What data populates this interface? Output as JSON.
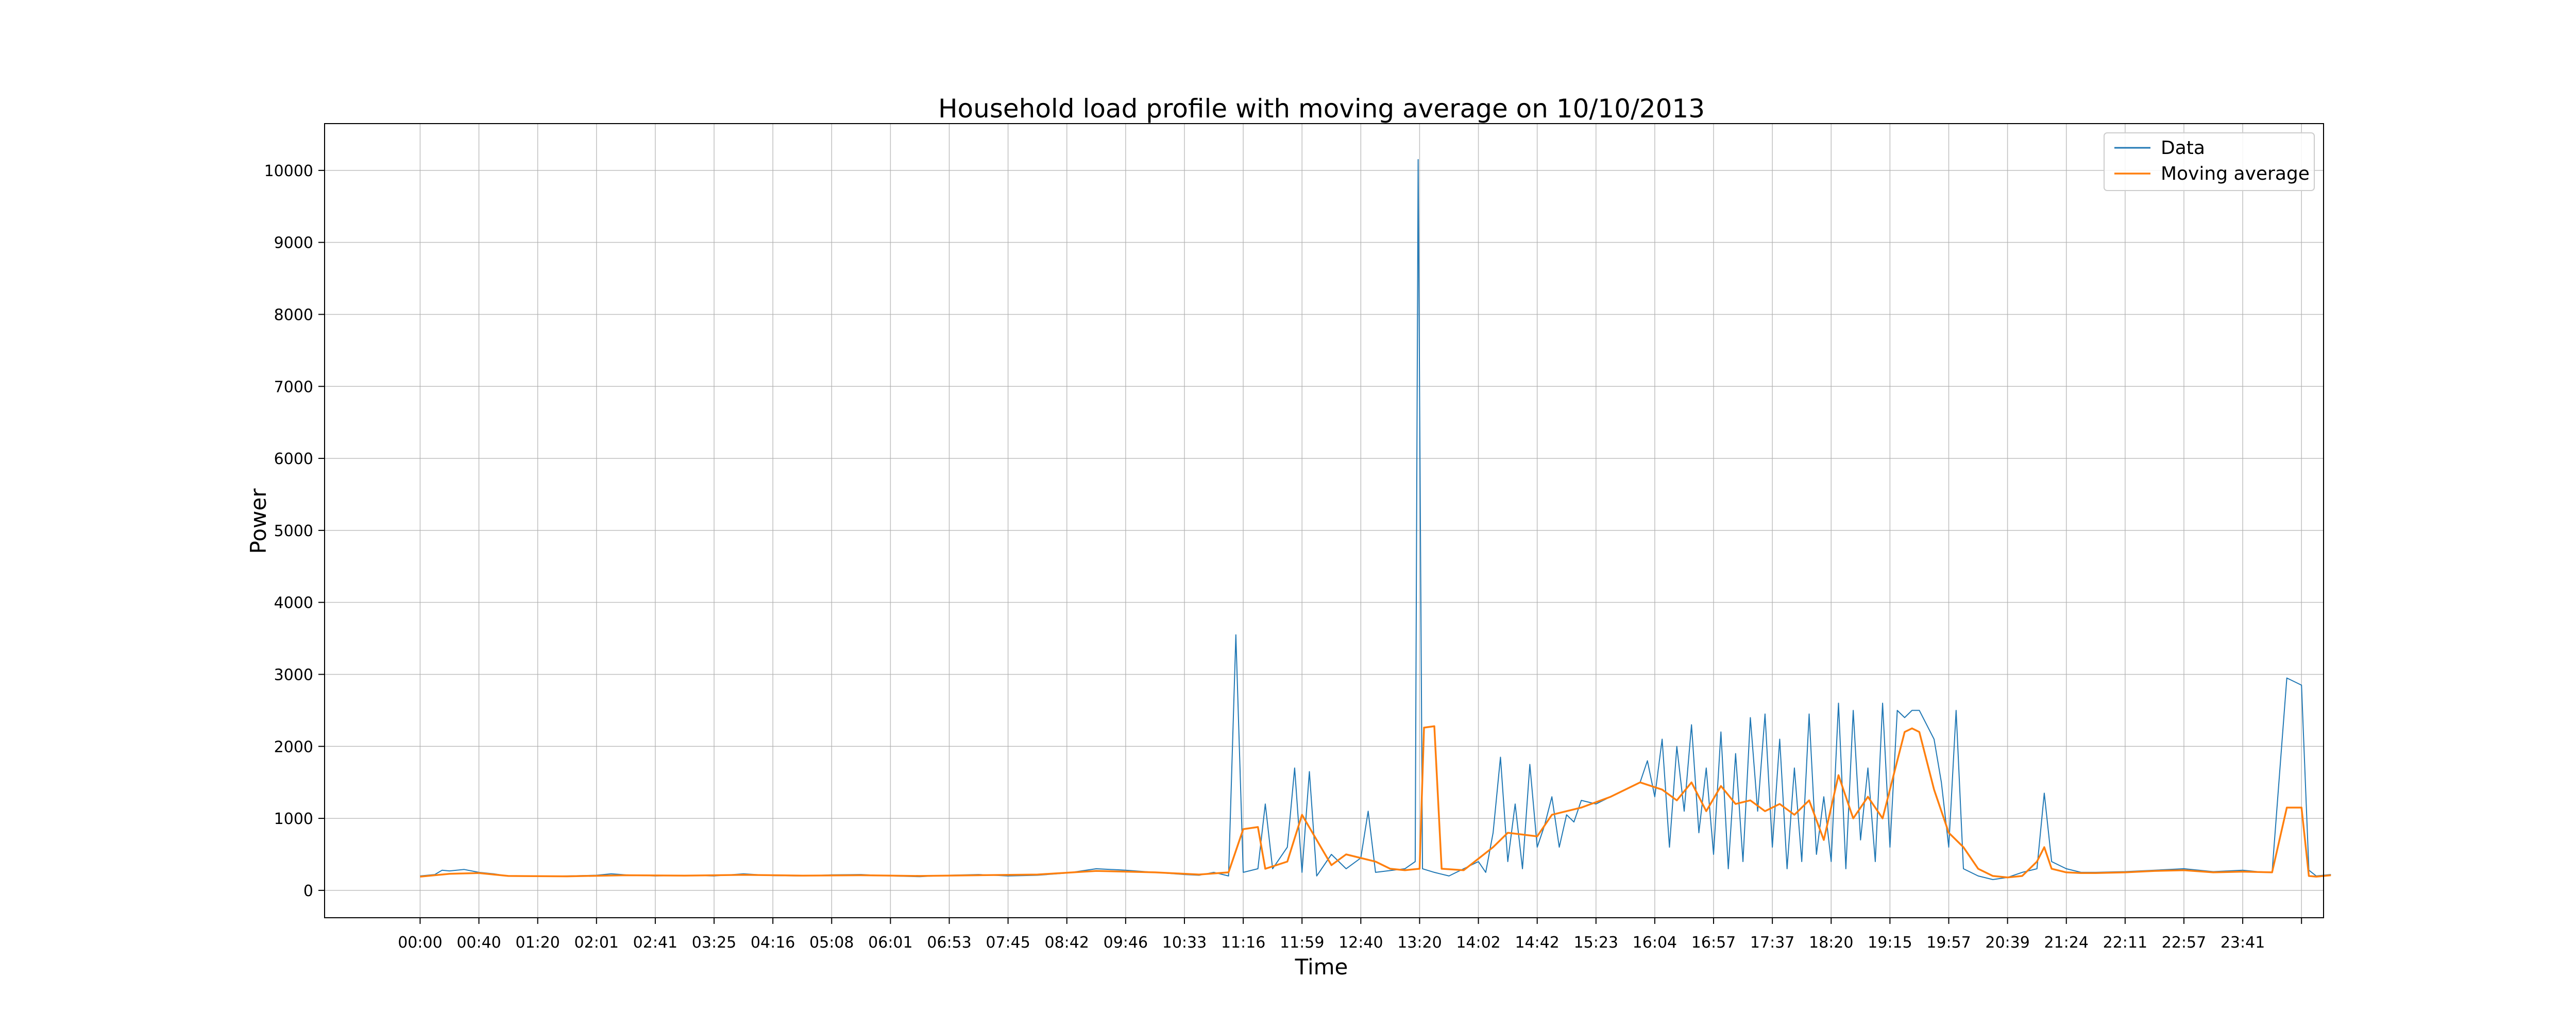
{
  "chart_data": {
    "type": "line",
    "title": "Household load profile with moving average on 10/10/2013",
    "xlabel": "Time",
    "ylabel": "Power",
    "xlim": [
      -6.5,
      129.5
    ],
    "ylim": [
      -380,
      10650
    ],
    "grid": true,
    "legend_position": "top-right",
    "x_tick_labels": [
      "00:00",
      "00:40",
      "01:20",
      "02:01",
      "02:41",
      "03:25",
      "04:16",
      "05:08",
      "06:01",
      "06:53",
      "07:45",
      "08:42",
      "09:46",
      "10:33",
      "11:16",
      "11:59",
      "12:40",
      "13:20",
      "14:02",
      "14:42",
      "15:23",
      "16:04",
      "16:57",
      "17:37",
      "18:20",
      "19:15",
      "19:57",
      "20:39",
      "21:24",
      "22:11",
      "22:57",
      "23:41"
    ],
    "y_ticks": [
      0,
      1000,
      2000,
      3000,
      4000,
      5000,
      6000,
      7000,
      8000,
      9000,
      10000
    ],
    "series": [
      {
        "name": "Data",
        "color": "#1f77b4",
        "points": [
          [
            0,
            200
          ],
          [
            1,
            220
          ],
          [
            1.5,
            280
          ],
          [
            2,
            270
          ],
          [
            3,
            290
          ],
          [
            4,
            250
          ],
          [
            5,
            230
          ],
          [
            6,
            200
          ],
          [
            8,
            195
          ],
          [
            10,
            200
          ],
          [
            12,
            210
          ],
          [
            13,
            230
          ],
          [
            14,
            215
          ],
          [
            16,
            200
          ],
          [
            18,
            210
          ],
          [
            20,
            200
          ],
          [
            22,
            230
          ],
          [
            24,
            205
          ],
          [
            26,
            200
          ],
          [
            28,
            215
          ],
          [
            30,
            220
          ],
          [
            32,
            200
          ],
          [
            34,
            190
          ],
          [
            36,
            210
          ],
          [
            38,
            220
          ],
          [
            40,
            200
          ],
          [
            42,
            210
          ],
          [
            44,
            240
          ],
          [
            46,
            300
          ],
          [
            48,
            280
          ],
          [
            50,
            250
          ],
          [
            52,
            220
          ],
          [
            53,
            210
          ],
          [
            54,
            250
          ],
          [
            55,
            200
          ],
          [
            55.5,
            3550
          ],
          [
            56,
            250
          ],
          [
            57,
            300
          ],
          [
            57.5,
            1200
          ],
          [
            58,
            300
          ],
          [
            59,
            600
          ],
          [
            59.5,
            1700
          ],
          [
            60,
            250
          ],
          [
            60.5,
            1650
          ],
          [
            61,
            200
          ],
          [
            62,
            500
          ],
          [
            63,
            300
          ],
          [
            64,
            450
          ],
          [
            64.5,
            1100
          ],
          [
            65,
            250
          ],
          [
            67,
            300
          ],
          [
            67.7,
            400
          ],
          [
            67.9,
            10150
          ],
          [
            68.2,
            300
          ],
          [
            69,
            250
          ],
          [
            70,
            200
          ],
          [
            71,
            300
          ],
          [
            72,
            400
          ],
          [
            72.5,
            250
          ],
          [
            73,
            800
          ],
          [
            73.5,
            1850
          ],
          [
            74,
            400
          ],
          [
            74.5,
            1200
          ],
          [
            75,
            300
          ],
          [
            75.5,
            1750
          ],
          [
            76,
            600
          ],
          [
            76.5,
            900
          ],
          [
            77,
            1300
          ],
          [
            77.5,
            600
          ],
          [
            78,
            1050
          ],
          [
            78.5,
            950
          ],
          [
            79,
            1250
          ],
          [
            80,
            1200
          ],
          [
            81,
            1300
          ],
          [
            82,
            1400
          ],
          [
            83,
            1500
          ],
          [
            83.5,
            1800
          ],
          [
            84,
            1300
          ],
          [
            84.5,
            2100
          ],
          [
            85,
            600
          ],
          [
            85.5,
            2000
          ],
          [
            86,
            1100
          ],
          [
            86.5,
            2300
          ],
          [
            87,
            800
          ],
          [
            87.5,
            1700
          ],
          [
            88,
            500
          ],
          [
            88.5,
            2200
          ],
          [
            89,
            300
          ],
          [
            89.5,
            1900
          ],
          [
            90,
            400
          ],
          [
            90.5,
            2400
          ],
          [
            91,
            1100
          ],
          [
            91.5,
            2450
          ],
          [
            92,
            600
          ],
          [
            92.5,
            2100
          ],
          [
            93,
            300
          ],
          [
            93.5,
            1700
          ],
          [
            94,
            400
          ],
          [
            94.5,
            2450
          ],
          [
            95,
            500
          ],
          [
            95.5,
            1300
          ],
          [
            96,
            400
          ],
          [
            96.5,
            2600
          ],
          [
            97,
            300
          ],
          [
            97.5,
            2500
          ],
          [
            98,
            700
          ],
          [
            98.5,
            1700
          ],
          [
            99,
            400
          ],
          [
            99.5,
            2600
          ],
          [
            100,
            600
          ],
          [
            100.5,
            2500
          ],
          [
            101,
            2400
          ],
          [
            101.5,
            2500
          ],
          [
            102,
            2500
          ],
          [
            102.5,
            2300
          ],
          [
            103,
            2100
          ],
          [
            103.5,
            1500
          ],
          [
            104,
            600
          ],
          [
            104.5,
            2500
          ],
          [
            105,
            300
          ],
          [
            106,
            200
          ],
          [
            107,
            150
          ],
          [
            108,
            180
          ],
          [
            109,
            250
          ],
          [
            110,
            300
          ],
          [
            110.5,
            1350
          ],
          [
            111,
            400
          ],
          [
            112,
            300
          ],
          [
            113,
            250
          ],
          [
            114,
            250
          ],
          [
            116,
            260
          ],
          [
            118,
            280
          ],
          [
            120,
            300
          ],
          [
            122,
            260
          ],
          [
            123,
            270
          ],
          [
            124,
            280
          ],
          [
            125,
            260
          ],
          [
            126,
            250
          ],
          [
            127,
            2950
          ],
          [
            128,
            2850
          ],
          [
            128.5,
            280
          ],
          [
            129,
            200
          ],
          [
            130,
            220
          ]
        ]
      },
      {
        "name": "Moving average",
        "color": "#ff7f0e",
        "points": [
          [
            0,
            190
          ],
          [
            2,
            230
          ],
          [
            4,
            240
          ],
          [
            6,
            200
          ],
          [
            10,
            195
          ],
          [
            14,
            210
          ],
          [
            18,
            205
          ],
          [
            22,
            215
          ],
          [
            26,
            205
          ],
          [
            30,
            210
          ],
          [
            34,
            200
          ],
          [
            38,
            210
          ],
          [
            42,
            220
          ],
          [
            46,
            270
          ],
          [
            50,
            250
          ],
          [
            53,
            220
          ],
          [
            55,
            250
          ],
          [
            56,
            850
          ],
          [
            57,
            880
          ],
          [
            57.5,
            300
          ],
          [
            59,
            400
          ],
          [
            60,
            1050
          ],
          [
            61,
            700
          ],
          [
            62,
            350
          ],
          [
            63,
            500
          ],
          [
            65,
            400
          ],
          [
            66,
            300
          ],
          [
            67,
            280
          ],
          [
            68,
            300
          ],
          [
            68.3,
            2260
          ],
          [
            69,
            2280
          ],
          [
            69.5,
            300
          ],
          [
            71,
            280
          ],
          [
            73,
            600
          ],
          [
            74,
            800
          ],
          [
            76,
            750
          ],
          [
            77,
            1050
          ],
          [
            79,
            1150
          ],
          [
            81,
            1300
          ],
          [
            83,
            1500
          ],
          [
            84.5,
            1400
          ],
          [
            85.5,
            1250
          ],
          [
            86.5,
            1500
          ],
          [
            87.5,
            1100
          ],
          [
            88.5,
            1450
          ],
          [
            89.5,
            1200
          ],
          [
            90.5,
            1250
          ],
          [
            91.5,
            1100
          ],
          [
            92.5,
            1200
          ],
          [
            93.5,
            1050
          ],
          [
            94.5,
            1250
          ],
          [
            95.5,
            700
          ],
          [
            96.5,
            1600
          ],
          [
            97.5,
            1000
          ],
          [
            98.5,
            1300
          ],
          [
            99.5,
            1000
          ],
          [
            100.5,
            1800
          ],
          [
            101,
            2200
          ],
          [
            101.5,
            2250
          ],
          [
            102,
            2200
          ],
          [
            103,
            1400
          ],
          [
            104,
            800
          ],
          [
            105,
            600
          ],
          [
            106,
            300
          ],
          [
            107,
            200
          ],
          [
            108,
            180
          ],
          [
            109,
            200
          ],
          [
            110,
            400
          ],
          [
            110.5,
            600
          ],
          [
            111,
            300
          ],
          [
            112,
            250
          ],
          [
            113,
            240
          ],
          [
            114,
            240
          ],
          [
            116,
            250
          ],
          [
            118,
            270
          ],
          [
            120,
            280
          ],
          [
            122,
            250
          ],
          [
            124,
            260
          ],
          [
            126,
            250
          ],
          [
            127,
            1150
          ],
          [
            128,
            1150
          ],
          [
            128.5,
            200
          ],
          [
            129,
            190
          ],
          [
            130,
            210
          ]
        ]
      }
    ]
  }
}
